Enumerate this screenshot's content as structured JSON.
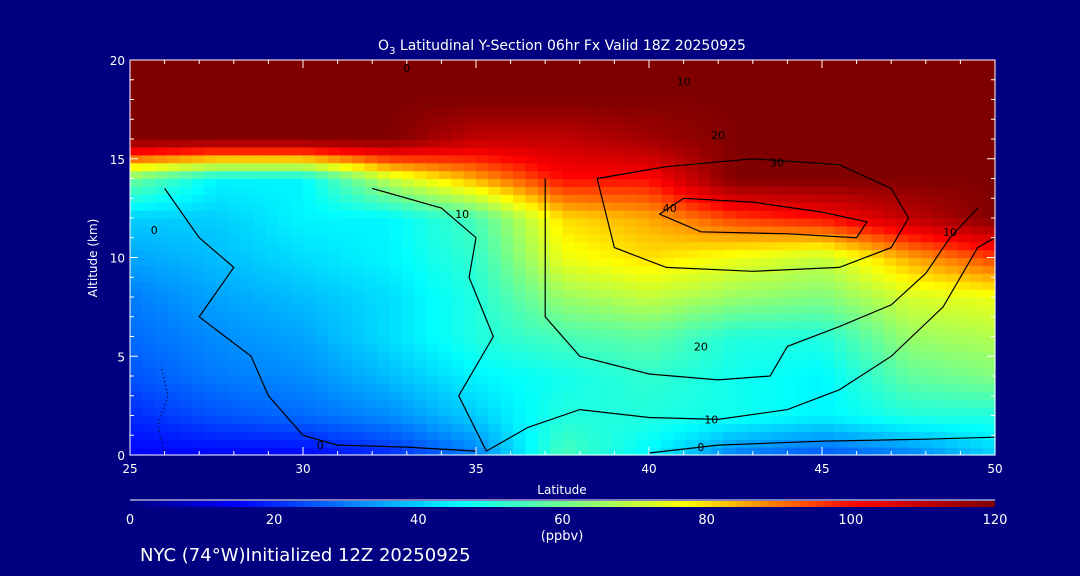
{
  "chart_data": {
    "type": "heatmap",
    "title_prefix": "O",
    "title_sub": "3",
    "title_rest": " Latitudinal Y-Section 06hr  Fx Valid 18Z 20250925",
    "xlabel": "Latitude",
    "ylabel": "Altitude (km)",
    "xlim": [
      25,
      50
    ],
    "ylim": [
      0,
      20
    ],
    "xticks": [
      "25",
      "30",
      "35",
      "40",
      "45",
      "50"
    ],
    "yticks": [
      "0",
      "5",
      "10",
      "15",
      "20"
    ],
    "x": [
      25,
      27.5,
      30,
      32.5,
      35,
      37.5,
      40,
      42.5,
      45,
      47.5,
      50
    ],
    "y": [
      0,
      2,
      4,
      6,
      8,
      10,
      12,
      14,
      16,
      18,
      20
    ],
    "z": [
      [
        15,
        15,
        15,
        20,
        30,
        55,
        45,
        30,
        25,
        30,
        40
      ],
      [
        20,
        25,
        28,
        32,
        40,
        50,
        50,
        48,
        45,
        50,
        50
      ],
      [
        25,
        30,
        32,
        38,
        45,
        48,
        52,
        48,
        45,
        58,
        62
      ],
      [
        28,
        32,
        35,
        42,
        50,
        55,
        58,
        50,
        50,
        65,
        68
      ],
      [
        30,
        35,
        38,
        42,
        50,
        65,
        70,
        65,
        62,
        72,
        75
      ],
      [
        35,
        38,
        42,
        45,
        52,
        75,
        80,
        75,
        70,
        85,
        95
      ],
      [
        40,
        40,
        45,
        45,
        55,
        80,
        85,
        95,
        100,
        110,
        120
      ],
      [
        60,
        45,
        45,
        70,
        85,
        100,
        100,
        120,
        120,
        120,
        120
      ],
      [
        120,
        120,
        120,
        120,
        110,
        110,
        115,
        120,
        120,
        120,
        120
      ],
      [
        120,
        120,
        120,
        120,
        120,
        120,
        120,
        120,
        120,
        120,
        120
      ],
      [
        120,
        120,
        120,
        120,
        120,
        120,
        120,
        120,
        120,
        120,
        120
      ]
    ],
    "contours": [
      {
        "level": "0",
        "dotted": true,
        "points": [
          [
            26,
            0
          ],
          [
            25.8,
            1.5
          ],
          [
            26.1,
            3
          ],
          [
            25.9,
            4.5
          ]
        ]
      },
      {
        "level": "0",
        "dotted": false,
        "points": [
          [
            40,
            0.1
          ],
          [
            42,
            0.5
          ],
          [
            45,
            0.7
          ],
          [
            48,
            0.8
          ],
          [
            50,
            0.9
          ]
        ]
      },
      {
        "level": "10",
        "dotted": false,
        "points": [
          [
            35.3,
            0.2
          ],
          [
            36.5,
            1.4
          ],
          [
            38,
            2.3
          ],
          [
            40,
            1.9
          ],
          [
            42,
            1.8
          ],
          [
            44,
            2.3
          ],
          [
            45.5,
            3.3
          ],
          [
            47,
            5
          ],
          [
            48.5,
            7.5
          ],
          [
            49.5,
            10.5
          ],
          [
            50,
            11
          ]
        ]
      },
      {
        "level": "20",
        "dotted": false,
        "points": [
          [
            37,
            14
          ],
          [
            37,
            7
          ],
          [
            38,
            5
          ],
          [
            40,
            4.1
          ],
          [
            42,
            3.8
          ],
          [
            43.5,
            4
          ],
          [
            44,
            5.5
          ],
          [
            45.5,
            6.5
          ],
          [
            47,
            7.6
          ],
          [
            48,
            9.2
          ],
          [
            48.7,
            11
          ],
          [
            49.5,
            12.5
          ]
        ]
      },
      {
        "level": "30",
        "dotted": false,
        "points": [
          [
            38.5,
            14
          ],
          [
            39,
            10.5
          ],
          [
            40.5,
            9.5
          ],
          [
            43,
            9.3
          ],
          [
            45.5,
            9.5
          ],
          [
            47,
            10.5
          ],
          [
            47.5,
            12
          ],
          [
            47,
            13.5
          ],
          [
            45.5,
            14.7
          ],
          [
            43,
            15
          ],
          [
            40.5,
            14.6
          ],
          [
            38.5,
            14
          ]
        ]
      },
      {
        "level": "40",
        "dotted": false,
        "points": [
          [
            40.3,
            12.2
          ],
          [
            41.5,
            11.3
          ],
          [
            44,
            11.2
          ],
          [
            46,
            11
          ],
          [
            46.3,
            11.8
          ],
          [
            45,
            12.3
          ],
          [
            43,
            12.8
          ],
          [
            41,
            13
          ],
          [
            40.3,
            12.2
          ]
        ]
      },
      {
        "level": "10",
        "dotted": false,
        "points": [
          [
            32,
            13.5
          ],
          [
            34,
            12.5
          ],
          [
            35,
            11
          ],
          [
            34.8,
            9
          ],
          [
            35.5,
            6
          ],
          [
            34.5,
            3
          ],
          [
            35.3,
            0.2
          ]
        ]
      },
      {
        "level": "0",
        "dotted": false,
        "points": [
          [
            26,
            13.5
          ],
          [
            27,
            11
          ],
          [
            28,
            9.5
          ],
          [
            27,
            7
          ],
          [
            28.5,
            5
          ],
          [
            29,
            3
          ],
          [
            30,
            1
          ],
          [
            31,
            0.5
          ],
          [
            33,
            0.4
          ],
          [
            35,
            0.2
          ]
        ]
      }
    ],
    "contour_labels": [
      {
        "text": "0",
        "x": 25.7,
        "y": 11.4
      },
      {
        "text": "0",
        "x": 30.5,
        "y": 0.5
      },
      {
        "text": "0",
        "x": 41.5,
        "y": 0.4
      },
      {
        "text": "10",
        "x": 34.6,
        "y": 12.2
      },
      {
        "text": "10",
        "x": 41.8,
        "y": 1.8
      },
      {
        "text": "10",
        "x": 48.7,
        "y": 11.3
      },
      {
        "text": "10",
        "x": 41,
        "y": 18.9
      },
      {
        "text": "20",
        "x": 41.5,
        "y": 5.5
      },
      {
        "text": "20",
        "x": 42,
        "y": 16.2
      },
      {
        "text": "30",
        "x": 43.7,
        "y": 14.8
      },
      {
        "text": "40",
        "x": 40.6,
        "y": 12.5
      },
      {
        "text": "0",
        "x": 33,
        "y": 19.6
      }
    ],
    "colorbar": {
      "min": 0,
      "max": 120,
      "ticks": [
        "0",
        "20",
        "40",
        "60",
        "80",
        "100",
        "120"
      ],
      "unit": "(ppbv)",
      "stops": [
        [
          0,
          "#000080"
        ],
        [
          15,
          "#0000ff"
        ],
        [
          46,
          "#00ffff"
        ],
        [
          62,
          "#80ff80"
        ],
        [
          77,
          "#ffff00"
        ],
        [
          101,
          "#ff0000"
        ],
        [
          120,
          "#800000"
        ]
      ]
    }
  },
  "footer": "NYC (74°W)Initialized 12Z 20250925"
}
